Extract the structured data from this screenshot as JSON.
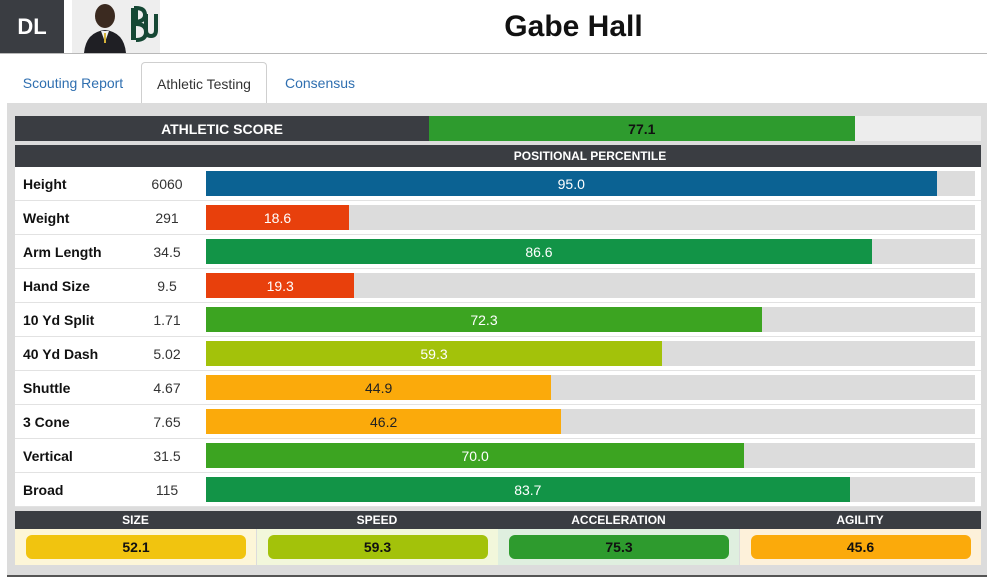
{
  "header": {
    "position": "DL",
    "player_name": "Gabe Hall"
  },
  "tabs": [
    {
      "label": "Scouting Report",
      "active": false
    },
    {
      "label": "Athletic Testing",
      "active": true
    },
    {
      "label": "Consensus",
      "active": false
    }
  ],
  "athletic_score": {
    "label": "ATHLETIC SCORE",
    "value": "77.1",
    "percent": 77.1,
    "color": "#2e9b2e"
  },
  "percentile_header": "POSITIONAL PERCENTILE",
  "measurements": [
    {
      "label": "Height",
      "value": "6060",
      "percentile": "95.0",
      "pct": 95.0,
      "color": "#0b6293"
    },
    {
      "label": "Weight",
      "value": "291",
      "percentile": "18.6",
      "pct": 18.6,
      "color": "#e8400c"
    },
    {
      "label": "Arm Length",
      "value": "34.5",
      "percentile": "86.6",
      "pct": 86.6,
      "color": "#129447"
    },
    {
      "label": "Hand Size",
      "value": "9.5",
      "percentile": "19.3",
      "pct": 19.3,
      "color": "#e8400c"
    },
    {
      "label": "10 Yd Split",
      "value": "1.71",
      "percentile": "72.3",
      "pct": 72.3,
      "color": "#3ca421"
    },
    {
      "label": "40 Yd Dash",
      "value": "5.02",
      "percentile": "59.3",
      "pct": 59.3,
      "color": "#a3c20a"
    },
    {
      "label": "Shuttle",
      "value": "4.67",
      "percentile": "44.9",
      "pct": 44.9,
      "color": "#fbaa0b"
    },
    {
      "label": "3 Cone",
      "value": "7.65",
      "percentile": "46.2",
      "pct": 46.2,
      "color": "#fbaa0b"
    },
    {
      "label": "Vertical",
      "value": "31.5",
      "percentile": "70.0",
      "pct": 70.0,
      "color": "#3ca421"
    },
    {
      "label": "Broad",
      "value": "115",
      "percentile": "83.7",
      "pct": 83.7,
      "color": "#129447"
    }
  ],
  "categories": [
    {
      "label": "SIZE",
      "value": "52.1",
      "color": "#f1c40f",
      "bg": "#fdf6d8"
    },
    {
      "label": "SPEED",
      "value": "59.3",
      "color": "#a3c20a",
      "bg": "#f2f7db"
    },
    {
      "label": "ACCELERATION",
      "value": "75.3",
      "color": "#2e9b2e",
      "bg": "#dfefdf"
    },
    {
      "label": "AGILITY",
      "value": "45.6",
      "color": "#fbaa0b",
      "bg": "#fdf1da"
    }
  ]
}
